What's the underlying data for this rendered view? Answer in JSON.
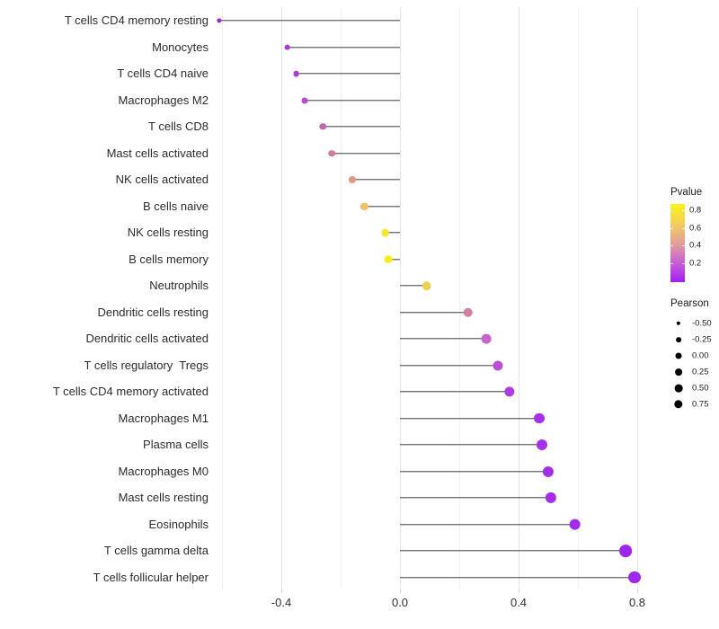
{
  "chart_data": {
    "type": "lollipop",
    "description": "Horizontal lollipop chart of Pearson correlation per immune cell type; dot color encodes Pvalue, dot size encodes Pearson",
    "x_axis": {
      "tick_labels": [
        "-0.4",
        "0.0",
        "0.4",
        "0.8"
      ],
      "tick_values": [
        -0.4,
        0.0,
        0.4,
        0.8
      ],
      "minor_tick_values": [
        -0.6,
        -0.2,
        0.2,
        0.6
      ],
      "range": [
        -0.63,
        0.83
      ],
      "baseline": 0.0
    },
    "rows": [
      {
        "label": "T cells CD4 memory resting",
        "pearson": -0.61,
        "pvalue": 0.01,
        "color": "#9c2bdf"
      },
      {
        "label": "Monocytes",
        "pearson": -0.38,
        "pvalue": 0.07,
        "color": "#a936db"
      },
      {
        "label": "T cells CD4 naive",
        "pearson": -0.35,
        "pvalue": 0.09,
        "color": "#ae3cd6"
      },
      {
        "label": "Macrophages M2",
        "pearson": -0.32,
        "pvalue": 0.13,
        "color": "#b44bcb"
      },
      {
        "label": "T cells CD8",
        "pearson": -0.26,
        "pvalue": 0.22,
        "color": "#c467b3"
      },
      {
        "label": "Mast cells activated",
        "pearson": -0.23,
        "pvalue": 0.3,
        "color": "#cf7b9e"
      },
      {
        "label": "NK cells activated",
        "pearson": -0.16,
        "pvalue": 0.45,
        "color": "#e0997b"
      },
      {
        "label": "B cells naive",
        "pearson": -0.12,
        "pvalue": 0.58,
        "color": "#f2be69"
      },
      {
        "label": "NK cells resting",
        "pearson": -0.05,
        "pvalue": 0.77,
        "color": "#f5e926"
      },
      {
        "label": "B cells memory",
        "pearson": -0.04,
        "pvalue": 0.82,
        "color": "#f7ef0a"
      },
      {
        "label": "Neutrophils",
        "pearson": 0.09,
        "pvalue": 0.65,
        "color": "#efcf4f"
      },
      {
        "label": "Dendritic cells resting",
        "pearson": 0.23,
        "pvalue": 0.32,
        "color": "#d5809e"
      },
      {
        "label": "Dendritic cells activated",
        "pearson": 0.29,
        "pvalue": 0.21,
        "color": "#c763cb"
      },
      {
        "label": "T cells regulatory  Tregs",
        "pearson": 0.33,
        "pvalue": 0.14,
        "color": "#b94fd9"
      },
      {
        "label": "T cells CD4 memory activated",
        "pearson": 0.37,
        "pvalue": 0.08,
        "color": "#ac3ce2"
      },
      {
        "label": "Macrophages M1",
        "pearson": 0.47,
        "pvalue": 0.03,
        "color": "#a631e8"
      },
      {
        "label": "Plasma cells",
        "pearson": 0.48,
        "pvalue": 0.03,
        "color": "#a631e8"
      },
      {
        "label": "Macrophages M0",
        "pearson": 0.5,
        "pvalue": 0.025,
        "color": "#a52fe9"
      },
      {
        "label": "Mast cells resting",
        "pearson": 0.51,
        "pvalue": 0.025,
        "color": "#a52fe9"
      },
      {
        "label": "Eosinophils",
        "pearson": 0.59,
        "pvalue": 0.012,
        "color": "#a02beb"
      },
      {
        "label": "T cells gamma delta",
        "pearson": 0.76,
        "pvalue": 0.005,
        "color": "#9d27ec"
      },
      {
        "label": "T cells follicular helper",
        "pearson": 0.79,
        "pvalue": 0.003,
        "color": "#9d27ec"
      }
    ],
    "legend_pvalue": {
      "title": "Pvalue",
      "tick_labels": [
        "0.8",
        "0.6",
        "0.4",
        "0.2"
      ],
      "tick_values": [
        0.8,
        0.6,
        0.4,
        0.2
      ],
      "gradient_top_color": "#faf416",
      "gradient_bottom_color": "#a01ff0"
    },
    "legend_pearson": {
      "title": "Pearson",
      "items": [
        {
          "label": "-0.50",
          "diameter": 4.4
        },
        {
          "label": "-0.25",
          "diameter": 5.8
        },
        {
          "label": "0.00",
          "diameter": 7.0
        },
        {
          "label": "0.25",
          "diameter": 7.8
        },
        {
          "label": "0.50",
          "diameter": 8.7
        },
        {
          "label": "0.75",
          "diameter": 9.4
        }
      ]
    },
    "style": {
      "stem_color": "#3c3c3c",
      "grid_major_color": "#e4e4e4",
      "grid_minor_color": "#f1f1f1",
      "background": "#ffffff"
    }
  }
}
